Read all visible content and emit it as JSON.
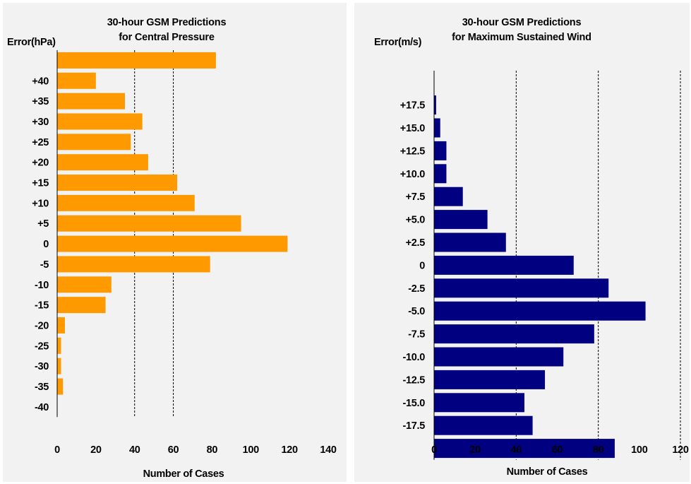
{
  "colors": {
    "pressure_bar": "#ff9900",
    "wind_bar": "#000080",
    "panel_bg": "#f2f2f2"
  },
  "chart_data": [
    {
      "type": "bar",
      "orientation": "horizontal",
      "title_lines": [
        "30-hour GSM Predictions",
        "for Central Pressure"
      ],
      "ylabel": "Error(hPa)",
      "xlabel": "Number of Cases",
      "x_ticks": [
        "0",
        "20",
        "40",
        "60",
        "80",
        "100",
        "120",
        "140"
      ],
      "xlim": [
        0,
        140
      ],
      "gridlines_x": [
        40,
        60
      ],
      "categories": [
        "",
        "+40",
        "+35",
        "+30",
        "+25",
        "+20",
        "+15",
        "+10",
        "+5",
        "0",
        "-5",
        "-10",
        "-15",
        "-20",
        "-25",
        "-30",
        "-35",
        "-40"
      ],
      "values": [
        82,
        20,
        35,
        44,
        38,
        47,
        62,
        71,
        95,
        119,
        79,
        28,
        25,
        4,
        2,
        2,
        3,
        0
      ],
      "color": "#ff9900"
    },
    {
      "type": "bar",
      "orientation": "horizontal",
      "title_lines": [
        "30-hour GSM Predictions",
        "for Maximum Sustained Wind"
      ],
      "ylabel": "Error(m/s)",
      "xlabel": "Number of Cases",
      "x_ticks": [
        "0",
        "20",
        "40",
        "60",
        "80",
        "100",
        "120"
      ],
      "xlim": [
        0,
        120
      ],
      "gridlines_x": [
        40,
        80,
        120
      ],
      "categories": [
        "",
        "+17.5",
        "+15.0",
        "+12.5",
        "+10.0",
        "+7.5",
        "+5.0",
        "+2.5",
        "0",
        "-2.5",
        "-5.0",
        "-7.5",
        "-10.0",
        "-12.5",
        "-15.0",
        "-17.5",
        ""
      ],
      "values": [
        0,
        1,
        3,
        6,
        6,
        14,
        26,
        35,
        68,
        85,
        103,
        78,
        63,
        54,
        44,
        48,
        88
      ],
      "color": "#000080"
    }
  ]
}
